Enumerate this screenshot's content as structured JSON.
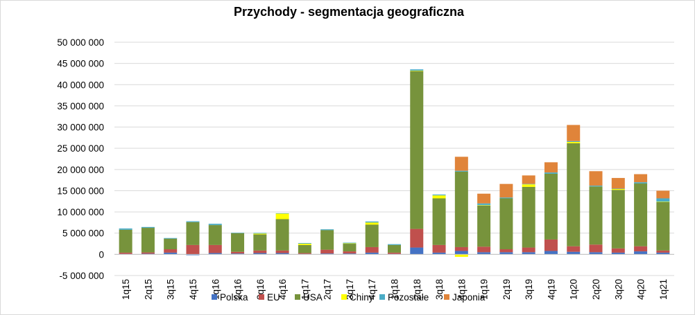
{
  "chart_data": {
    "type": "bar",
    "stacked": true,
    "title": "Przychody - segmentacja geograficzna",
    "xlabel": "",
    "ylabel": "",
    "ylim": [
      -5000000,
      50000000
    ],
    "ytick_step": 5000000,
    "yticks": [
      "-5 000 000",
      "0",
      "5 000 000",
      "10 000 000",
      "15 000 000",
      "20 000 000",
      "25 000 000",
      "30 000 000",
      "35 000 000",
      "40 000 000",
      "45 000 000",
      "50 000 000"
    ],
    "grid": true,
    "legend_position": "bottom",
    "categories": [
      "1q15",
      "2q15",
      "3q15",
      "4q15",
      "1q16",
      "2q16",
      "3q16",
      "4q16",
      "1q17",
      "2q17",
      "3q17",
      "4q17",
      "1q18",
      "2q18",
      "3q18",
      "4q18",
      "1q19",
      "2q19",
      "3q19",
      "4q19",
      "1q20",
      "2q20",
      "3q20",
      "4q20",
      "1q21"
    ],
    "series": [
      {
        "name": "Polska",
        "color": "#4472C4",
        "values": [
          100000,
          150000,
          400000,
          -200000,
          300000,
          200000,
          300000,
          300000,
          100000,
          200000,
          200000,
          400000,
          100000,
          1600000,
          400000,
          800000,
          500000,
          500000,
          500000,
          800000,
          600000,
          500000,
          400000,
          700000,
          400000
        ]
      },
      {
        "name": "EU",
        "color": "#C0504D",
        "values": [
          300000,
          300000,
          800000,
          2200000,
          1900000,
          400000,
          600000,
          600000,
          200000,
          900000,
          500000,
          1300000,
          300000,
          4400000,
          1800000,
          900000,
          1300000,
          700000,
          1100000,
          2700000,
          1300000,
          1800000,
          1000000,
          1200000,
          500000
        ]
      },
      {
        "name": "USA",
        "color": "#77933C",
        "values": [
          5400000,
          5800000,
          2500000,
          5400000,
          4700000,
          4400000,
          3800000,
          7400000,
          1900000,
          4600000,
          1800000,
          5300000,
          1800000,
          37200000,
          11000000,
          17800000,
          9700000,
          12000000,
          14300000,
          15500000,
          24300000,
          13700000,
          13800000,
          14800000,
          11400000
        ]
      },
      {
        "name": "Chiny",
        "color": "#FFFF00",
        "values": [
          0,
          0,
          0,
          0,
          0,
          0,
          200000,
          1300000,
          300000,
          0,
          100000,
          500000,
          0,
          100000,
          700000,
          -600000,
          100000,
          0,
          600000,
          0,
          300000,
          0,
          200000,
          0,
          100000
        ]
      },
      {
        "name": "Pozostałe",
        "color": "#4BACC6",
        "values": [
          300000,
          200000,
          150000,
          200000,
          300000,
          100000,
          150000,
          100000,
          150000,
          200000,
          150000,
          250000,
          200000,
          300000,
          200000,
          200000,
          400000,
          200000,
          100000,
          300000,
          200000,
          200000,
          100000,
          300000,
          800000
        ]
      },
      {
        "name": "Japonia",
        "color": "#E0843A",
        "values": [
          0,
          0,
          0,
          0,
          0,
          0,
          0,
          0,
          0,
          0,
          0,
          0,
          0,
          0,
          0,
          3300000,
          2300000,
          3200000,
          2000000,
          2400000,
          3800000,
          3400000,
          2500000,
          1900000,
          1800000
        ]
      }
    ]
  }
}
